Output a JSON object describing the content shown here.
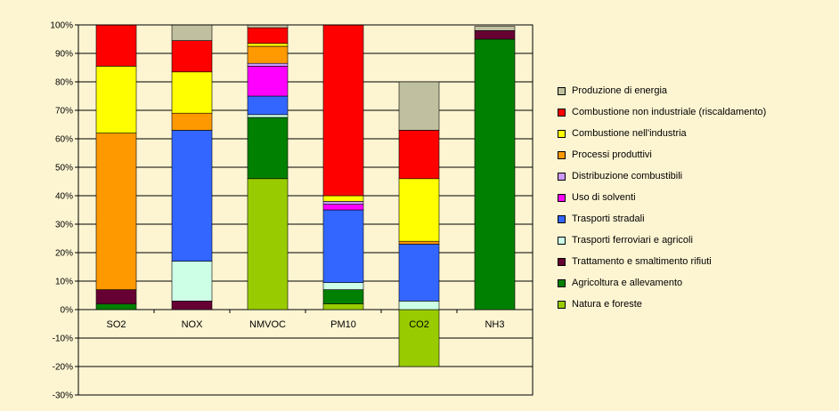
{
  "chart_data": {
    "type": "bar",
    "stacked": true,
    "categories": [
      "SO2",
      "NOX",
      "NMVOC",
      "PM10",
      "CO2",
      "NH3"
    ],
    "ylim": [
      -30,
      100
    ],
    "yticks": [
      -30,
      -20,
      -10,
      0,
      10,
      20,
      30,
      40,
      50,
      60,
      70,
      80,
      90,
      100
    ],
    "ytick_labels": [
      "-30%",
      "-20%",
      "-10%",
      "0%",
      "10%",
      "20%",
      "30%",
      "40%",
      "50%",
      "60%",
      "70%",
      "80%",
      "90%",
      "100%"
    ],
    "grid": true,
    "legend_position": "right",
    "legend_order": [
      "Produzione di energia",
      "Combustione non industriale (riscaldamento)",
      "Combustione nell'industria",
      "Processi produttivi",
      "Distribuzione combustibili",
      "Uso di solventi",
      "Trasporti stradali",
      "Trasporti ferroviari e agricoli",
      "Trattamento e smaltimento rifiuti",
      "Agricoltura e allevamento",
      "Natura e foreste"
    ],
    "series": [
      {
        "name": "Natura e foreste",
        "color": "#99CC00",
        "values": [
          0,
          0,
          46,
          2,
          -20,
          0
        ]
      },
      {
        "name": "Agricoltura e allevamento",
        "color": "#008000",
        "values": [
          2,
          0,
          21.5,
          5,
          0,
          95
        ]
      },
      {
        "name": "Trattamento e smaltimento rifiuti",
        "color": "#660033",
        "values": [
          5,
          3,
          0,
          0,
          0,
          3
        ]
      },
      {
        "name": "Trasporti ferroviari e agricoli",
        "color": "#CCFFE6",
        "values": [
          0,
          14,
          1,
          2.5,
          3,
          0
        ]
      },
      {
        "name": "Trasporti stradali",
        "color": "#3366FF",
        "values": [
          0,
          46,
          6.5,
          25.5,
          20,
          0
        ]
      },
      {
        "name": "Uso di solventi",
        "color": "#FF00FF",
        "values": [
          0,
          0,
          10.5,
          2,
          0,
          0
        ]
      },
      {
        "name": "Distribuzione combustibili",
        "color": "#CC99FF",
        "values": [
          0,
          0,
          1,
          1,
          0,
          0
        ]
      },
      {
        "name": "Processi produttivi",
        "color": "#FF9900",
        "values": [
          55,
          6,
          6,
          0,
          1,
          0
        ]
      },
      {
        "name": "Combustione nell'industria",
        "color": "#FFFF00",
        "values": [
          23.5,
          14.5,
          1,
          2,
          22,
          0
        ]
      },
      {
        "name": "Combustione non industriale (riscaldamento)",
        "color": "#FF0000",
        "values": [
          14.5,
          11,
          5.5,
          60,
          17,
          0
        ]
      },
      {
        "name": "Produzione di energia",
        "color": "#C0C0A0",
        "values": [
          0,
          5.5,
          1,
          0,
          17,
          1.5
        ]
      }
    ]
  }
}
